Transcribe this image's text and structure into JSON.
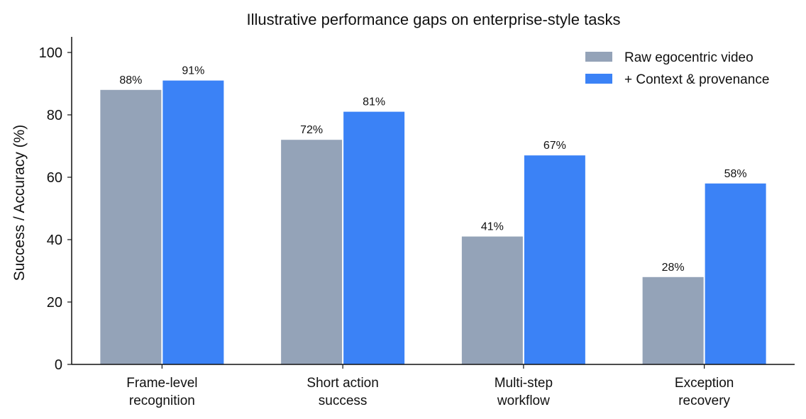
{
  "chart_data": {
    "type": "bar",
    "title": "Illustrative performance gaps on enterprise-style tasks",
    "xlabel": "",
    "ylabel": "Success / Accuracy (%)",
    "ylim": [
      0,
      105
    ],
    "yticks": [
      "0",
      "20",
      "40",
      "60",
      "80",
      "100"
    ],
    "categories": [
      [
        "Frame-level",
        "recognition"
      ],
      [
        "Short action",
        "success"
      ],
      [
        "Multi-step",
        "workflow"
      ],
      [
        "Exception",
        "recovery"
      ]
    ],
    "series": [
      {
        "name": "Raw egocentric video",
        "color": "#94a3b8",
        "values": [
          88,
          72,
          41,
          28
        ],
        "labels": [
          "88%",
          "72%",
          "41%",
          "28%"
        ]
      },
      {
        "name": "+ Context & provenance",
        "color": "#3b82f6",
        "values": [
          91,
          81,
          67,
          58
        ],
        "labels": [
          "91%",
          "81%",
          "67%",
          "58%"
        ]
      }
    ],
    "legend_position": "top-right",
    "grid": false
  }
}
